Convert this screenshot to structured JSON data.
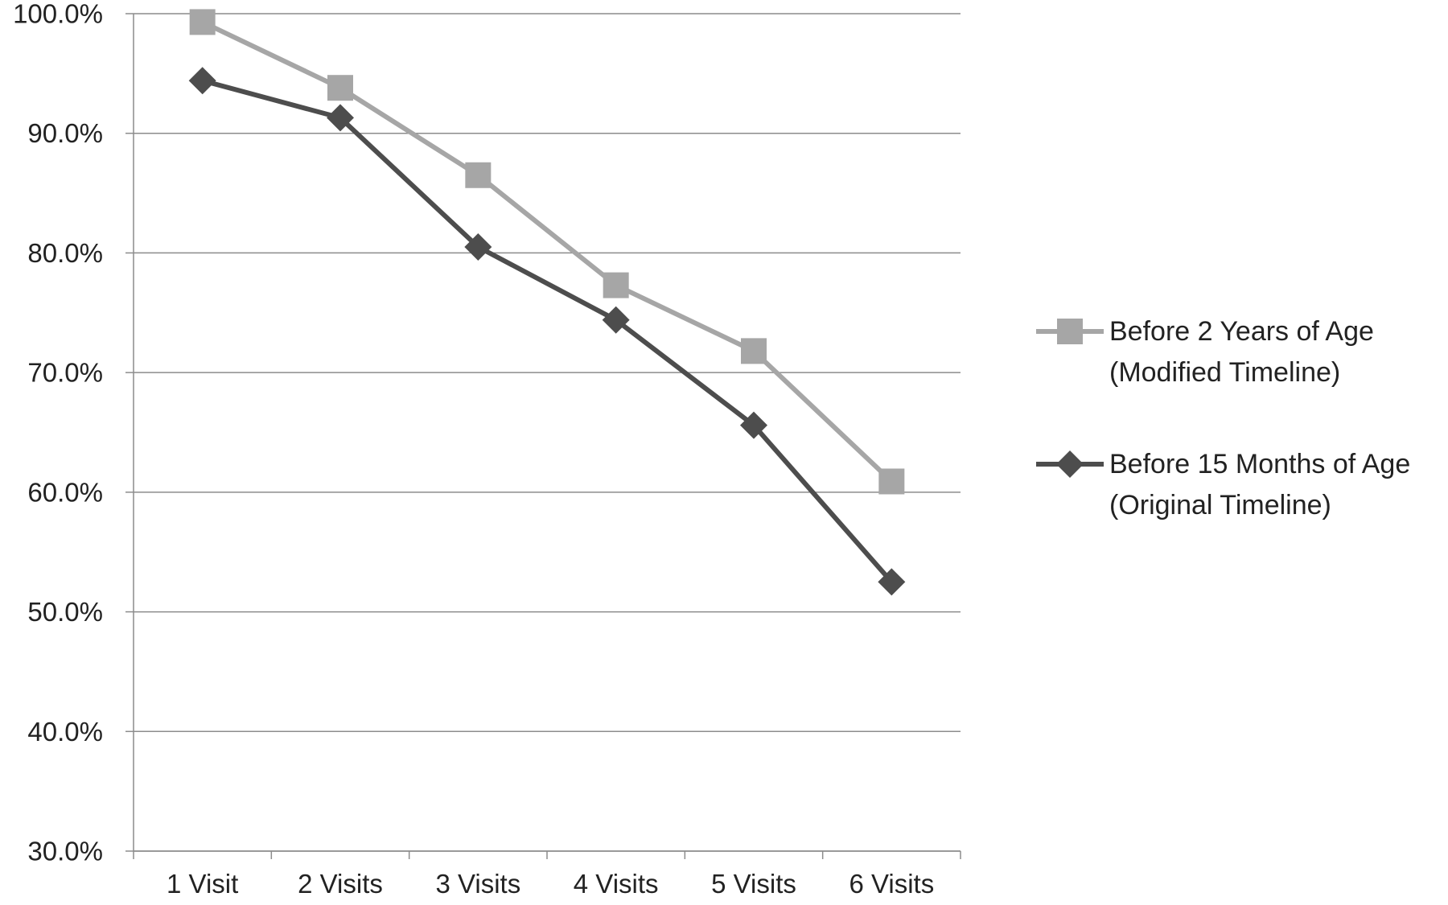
{
  "chart_data": {
    "type": "line",
    "title": "",
    "xlabel": "",
    "ylabel": "",
    "categories": [
      "1 Visit",
      "2 Visits",
      "3 Visits",
      "4 Visits",
      "5 Visits",
      "6 Visits"
    ],
    "ylim": [
      30,
      100
    ],
    "y_ticks": [
      30,
      40,
      50,
      60,
      70,
      80,
      90,
      100
    ],
    "y_tick_labels": [
      "30.0%",
      "40.0%",
      "50.0%",
      "60.0%",
      "70.0%",
      "80.0%",
      "90.0%",
      "100.0%"
    ],
    "grid": true,
    "legend_position": "right",
    "series": [
      {
        "name": "Before 2 Years of Age (Modified Timeline)",
        "legend_lines": [
          "Before 2 Years of Age",
          "(Modified Timeline)"
        ],
        "values": [
          99.3,
          93.8,
          86.5,
          77.3,
          71.8,
          60.9
        ],
        "color": "#a6a6a6",
        "marker": "square"
      },
      {
        "name": "Before 15 Months of Age (Original Timeline)",
        "legend_lines": [
          "Before 15 Months of Age",
          "(Original Timeline)"
        ],
        "values": [
          94.4,
          91.3,
          80.5,
          74.4,
          65.6,
          52.5
        ],
        "color": "#4d4d4d",
        "marker": "diamond"
      }
    ]
  }
}
